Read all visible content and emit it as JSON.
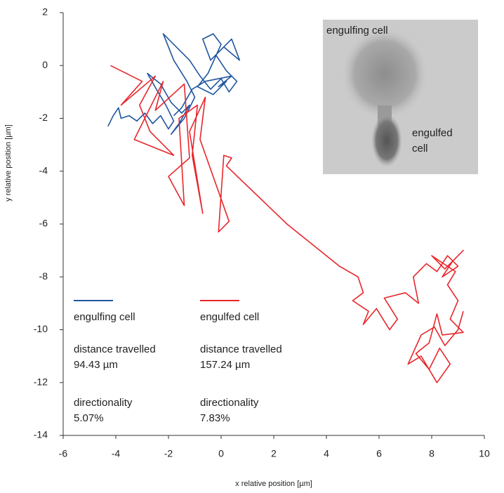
{
  "chart_data": {
    "type": "line",
    "xlabel": "x relative position [µm]",
    "ylabel": "y relative position [µm]",
    "xlim": [
      -6,
      10
    ],
    "xticks": [
      -6,
      -4,
      -2,
      0,
      2,
      4,
      6,
      8,
      10
    ],
    "ylim": [
      -14,
      2
    ],
    "yticks": [
      -14,
      -12,
      -10,
      -8,
      -6,
      -4,
      -2,
      0,
      2
    ],
    "series": [
      {
        "name": "engulfing cell",
        "color": "#1f56a0",
        "distance_label": "distance travelled",
        "distance": "94.43 µm",
        "directionality_label": "directionality",
        "directionality": "5.07%",
        "x": [
          -4.3,
          -4.1,
          -3.9,
          -3.8,
          -3.5,
          -3.2,
          -2.9,
          -2.6,
          -2.3,
          -2.0,
          -1.8,
          -2.1,
          -2.4,
          -2.8,
          -2.3,
          -1.9,
          -1.5,
          -1.2,
          -1.6,
          -1.9,
          -1.4,
          -1.0,
          -1.3,
          -1.8,
          -2.2,
          -1.6,
          -1.2,
          -0.8,
          -0.4,
          0,
          0.3,
          0.6,
          0.2,
          -0.2,
          0.4,
          0.7,
          0.1,
          -0.4,
          -0.7,
          -0.3,
          0.0,
          -0.5,
          -0.9,
          -0.3,
          0.2,
          -0.1,
          0.4,
          -0.6,
          -1.1,
          -1.5,
          -1.8
        ],
        "values": [
          -2.3,
          -1.9,
          -1.6,
          -2.0,
          -1.9,
          -2.1,
          -1.8,
          -2.2,
          -1.9,
          -2.4,
          -2.1,
          -1.5,
          -1.0,
          -0.3,
          -0.7,
          -1.4,
          -1.8,
          -1.5,
          -2.2,
          -2.6,
          -2.0,
          -1.2,
          -0.6,
          0.2,
          1.2,
          0.6,
          0.2,
          -0.4,
          -0.9,
          -0.5,
          -1.0,
          -0.6,
          -0.2,
          0.4,
          1.0,
          0.2,
          0.7,
          0.2,
          1.0,
          1.2,
          0.8,
          -0.3,
          -0.8,
          -1.1,
          -0.6,
          -0.8,
          -0.4,
          -0.6,
          -0.9,
          -1.6,
          -1.9
        ]
      },
      {
        "name": "engulfed cell",
        "color": "#e8262b",
        "distance_label": "distance travelled",
        "distance": "157.24 µm",
        "directionality_label": "directionality",
        "directionality": "7.83%",
        "x": [
          -4.2,
          -3.0,
          -3.8,
          -2.5,
          -3.1,
          -2.7,
          -1.8,
          -3.3,
          -2.2,
          -2.5,
          -1.4,
          -1.2,
          -2.0,
          -1.4,
          -1.6,
          -0.9,
          -1.1,
          -0.7,
          -1.2,
          -0.6,
          -0.8,
          0.3,
          -0.1,
          0.1,
          0.4,
          0.2,
          2.5,
          4.5,
          5.2,
          5.4,
          5.0,
          5.6,
          5.4,
          5.9,
          6.4,
          6.7,
          6.2,
          7.0,
          7.5,
          7.3,
          7.8,
          8.2,
          8.6,
          9.0,
          8.4,
          8.8,
          9.2,
          8.5,
          8.0,
          8.3,
          8.9,
          8.6,
          9.0,
          8.7,
          9.2,
          8.4,
          8.2,
          7.9,
          7.4,
          7.9,
          8.3,
          8.7,
          8.2,
          7.6,
          7.1,
          7.6,
          8.1,
          8.5,
          9.0,
          9.2
        ],
        "values": [
          0,
          -0.6,
          -1.5,
          -0.4,
          -1.5,
          -2.5,
          -3.4,
          -2.8,
          -0.6,
          -1.7,
          -0.7,
          -3.5,
          -4.2,
          -5.3,
          -2.0,
          -1.5,
          -3.4,
          -5.6,
          -2.5,
          -1.2,
          -2.8,
          -5.9,
          -6.3,
          -3.4,
          -3.5,
          -3.8,
          -6.0,
          -7.6,
          -8.0,
          -8.6,
          -8.9,
          -9.3,
          -9.8,
          -9.2,
          -10.0,
          -9.6,
          -8.8,
          -8.6,
          -9.0,
          -8.0,
          -7.5,
          -7.8,
          -7.2,
          -7.6,
          -8.0,
          -7.4,
          -7.0,
          -7.7,
          -7.2,
          -7.4,
          -7.8,
          -8.3,
          -8.9,
          -9.6,
          -10.1,
          -10.2,
          -9.4,
          -10.5,
          -10.9,
          -11.5,
          -10.7,
          -11.3,
          -12.0,
          -11.0,
          -11.3,
          -10.2,
          -9.9,
          -10.6,
          -10.0,
          -9.3
        ]
      }
    ],
    "inset_labels": [
      [
        "engulfing cell"
      ],
      [
        "engulfed",
        "cell"
      ]
    ]
  }
}
